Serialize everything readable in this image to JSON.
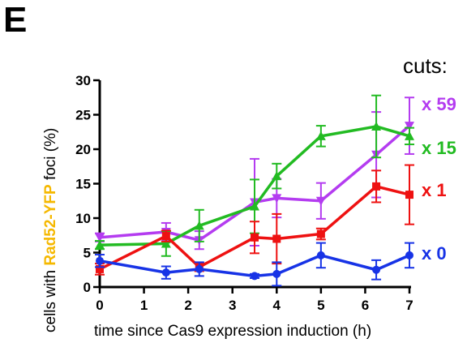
{
  "panel_letter": "E",
  "legend_title": "cuts:",
  "chart_data": {
    "type": "line",
    "x_axis": {
      "label": "time since Cas9 expression induction (h)",
      "ticks": [
        0,
        1,
        2,
        3,
        4,
        5,
        6,
        7
      ],
      "range": [
        0,
        7
      ]
    },
    "y_axis": {
      "label_before": "cells with",
      "label_highlight": "Rad52-YFP",
      "label_after": "foci (%)",
      "highlight_color": "#f5b800",
      "ticks": [
        0,
        5,
        10,
        15,
        20,
        25,
        30
      ],
      "range": [
        0,
        30
      ]
    },
    "legend_placement": "right",
    "series": [
      {
        "name": "x 59",
        "color": "#b43cf0",
        "marker": "triangle-down",
        "points": [
          {
            "x": 0,
            "y": 7.2,
            "err": 0.6
          },
          {
            "x": 1.5,
            "y": 8.0,
            "err": 1.3
          },
          {
            "x": 2.25,
            "y": 6.8,
            "err": 1.3
          },
          {
            "x": 3.5,
            "y": 12.3,
            "err": 6.3
          },
          {
            "x": 4.0,
            "y": 12.9,
            "err": 2.8
          },
          {
            "x": 5.0,
            "y": 12.5,
            "err": 2.6
          },
          {
            "x": 6.25,
            "y": 19.2,
            "err": 6.2
          },
          {
            "x": 7.0,
            "y": 23.4,
            "err": 4.1
          }
        ]
      },
      {
        "name": "x 15",
        "color": "#22bb22",
        "marker": "triangle-up",
        "points": [
          {
            "x": 0,
            "y": 6.1,
            "err": 0.6
          },
          {
            "x": 1.5,
            "y": 6.3,
            "err": 1.8
          },
          {
            "x": 2.25,
            "y": 8.9,
            "err": 2.3
          },
          {
            "x": 3.5,
            "y": 11.7,
            "err": 3.9
          },
          {
            "x": 4.0,
            "y": 16.1,
            "err": 1.8
          },
          {
            "x": 5.0,
            "y": 21.9,
            "err": 1.5
          },
          {
            "x": 6.25,
            "y": 23.3,
            "err": 4.5
          },
          {
            "x": 7.0,
            "y": 21.9,
            "err": 1.2
          }
        ]
      },
      {
        "name": "x 1",
        "color": "#ee1111",
        "marker": "square",
        "points": [
          {
            "x": 0,
            "y": 2.6,
            "err": 0.8
          },
          {
            "x": 1.5,
            "y": 7.4,
            "err": 0.8
          },
          {
            "x": 2.25,
            "y": 2.9,
            "err": 0.6
          },
          {
            "x": 3.5,
            "y": 7.2,
            "err": 2.3
          },
          {
            "x": 4.0,
            "y": 7.0,
            "err": 3.6
          },
          {
            "x": 5.0,
            "y": 7.7,
            "err": 0.8
          },
          {
            "x": 6.25,
            "y": 14.6,
            "err": 2.3
          },
          {
            "x": 7.0,
            "y": 13.4,
            "err": 4.3
          }
        ]
      },
      {
        "name": "x 0",
        "color": "#1733e6",
        "marker": "circle",
        "points": [
          {
            "x": 0,
            "y": 3.8,
            "err": 0.9
          },
          {
            "x": 1.5,
            "y": 2.1,
            "err": 0.9
          },
          {
            "x": 2.25,
            "y": 2.6,
            "err": 1.0
          },
          {
            "x": 3.5,
            "y": 1.6,
            "err": 0.3
          },
          {
            "x": 4.0,
            "y": 1.9,
            "err": 1.7
          },
          {
            "x": 5.0,
            "y": 4.6,
            "err": 1.8
          },
          {
            "x": 6.25,
            "y": 2.5,
            "err": 1.4
          },
          {
            "x": 7.0,
            "y": 4.6,
            "err": 1.8
          }
        ]
      }
    ]
  }
}
